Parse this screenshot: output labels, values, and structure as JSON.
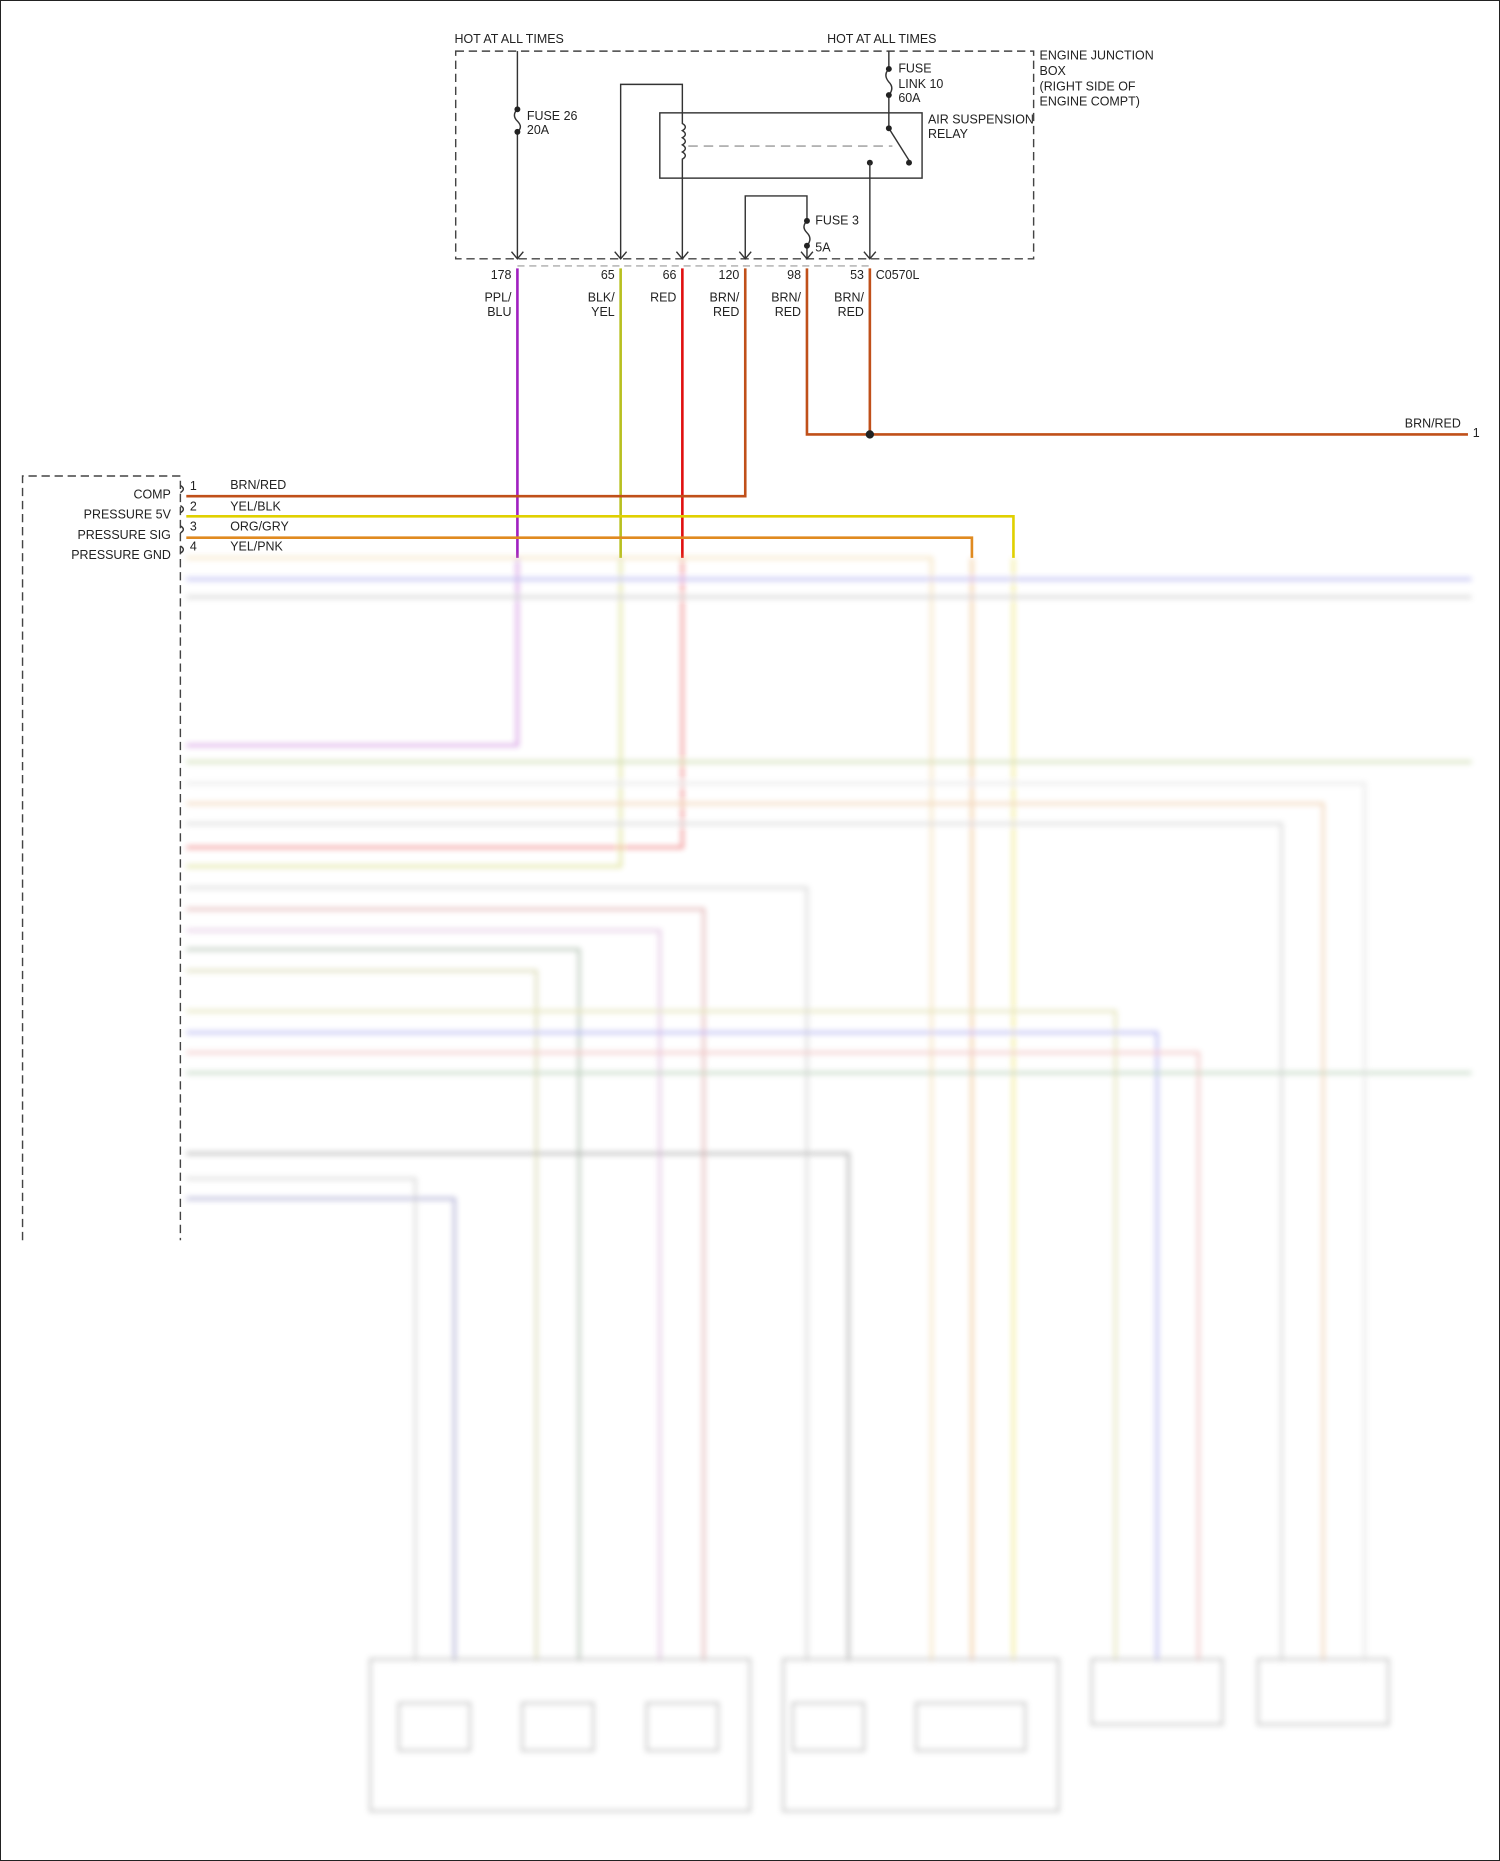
{
  "hot_labels": [
    "HOT AT ALL TIMES",
    "HOT AT ALL TIMES"
  ],
  "engine_junction_box": [
    "ENGINE JUNCTION",
    "BOX",
    "(RIGHT SIDE OF",
    "ENGINE COMPT)"
  ],
  "fuse26": [
    "FUSE 26",
    "20A"
  ],
  "fuse_link10": [
    "FUSE",
    "LINK 10",
    "60A"
  ],
  "relay": [
    "AIR SUSPENSION",
    "RELAY"
  ],
  "fuse3": [
    "FUSE 3",
    "5A"
  ],
  "connector": "C0570L",
  "pins": [
    {
      "num": "178",
      "color": [
        "PPL/",
        "BLU"
      ],
      "hex": "#a020c0"
    },
    {
      "num": "65",
      "color": [
        "BLK/",
        "YEL"
      ],
      "hex": "#b8c020"
    },
    {
      "num": "66",
      "color": [
        "RED"
      ],
      "hex": "#e01010"
    },
    {
      "num": "120",
      "color": [
        "BRN/",
        "RED"
      ],
      "hex": "#c0501a"
    },
    {
      "num": "98",
      "color": [
        "BRN/",
        "RED"
      ],
      "hex": "#c0501a"
    },
    {
      "num": "53",
      "color": [
        "BRN/",
        "RED"
      ],
      "hex": "#c0501a"
    }
  ],
  "right_wire": {
    "color": "BRN/RED",
    "pin": "1"
  },
  "module_pins": [
    {
      "label": "COMP",
      "num": "1",
      "color": "BRN/RED",
      "hex": "#c0501a"
    },
    {
      "label": "PRESSURE 5V",
      "num": "2",
      "color": "YEL/BLK",
      "hex": "#e0d000"
    },
    {
      "label": "PRESSURE SIG",
      "num": "3",
      "color": "ORG/GRY",
      "hex": "#e08a20"
    },
    {
      "label": "PRESSURE GND",
      "num": "4",
      "color": "YEL/PNK",
      "hex": "#e8c070"
    }
  ]
}
